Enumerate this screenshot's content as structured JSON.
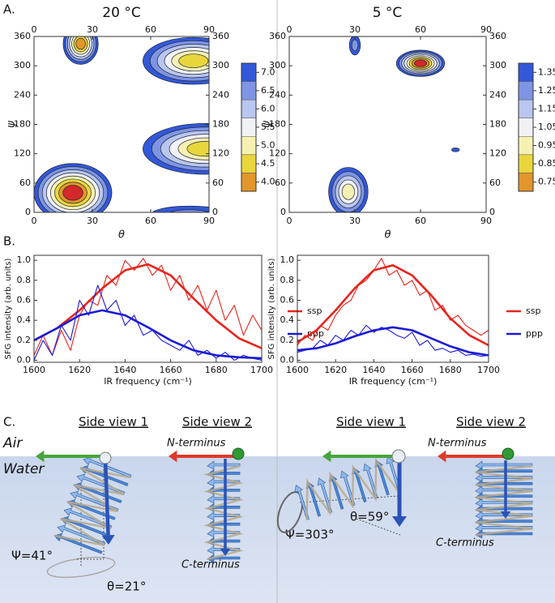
{
  "panels": {
    "a": "A.",
    "b": "B.",
    "c": "C."
  },
  "charts": [
    {
      "type": "contour",
      "title": "20 °C",
      "xlabel": "θ",
      "ylabel": "ψ",
      "xlim": [
        0,
        90
      ],
      "ylim": [
        0,
        360
      ],
      "xticks": [
        0,
        30,
        60,
        90
      ],
      "yticks": [
        0,
        60,
        120,
        180,
        240,
        300,
        360
      ],
      "colorbar": {
        "ticks": [
          {
            "value": 7,
            "label": "7.0"
          },
          6.5,
          {
            "value": 6,
            "label": "6.0"
          },
          5.5,
          {
            "value": 5,
            "label": "5.0"
          },
          4.5,
          {
            "value": 4,
            "label": "4.0"
          }
        ],
        "colors": [
          "#3358d8",
          "#7d95e4",
          "#b9c6ef",
          "#f1f2f7",
          "#f6f1b3",
          "#e9d63c",
          "#e2962c",
          "#d4282a"
        ]
      },
      "blobs": [
        {
          "center": [
            20,
            40
          ],
          "size": [
            20,
            60
          ],
          "rings": 8
        },
        {
          "center": [
            82,
            310
          ],
          "size": [
            26,
            48
          ],
          "rings": 6
        },
        {
          "center": [
            88,
            130
          ],
          "size": [
            32,
            52
          ],
          "rings": 6
        },
        {
          "center": [
            24,
            345
          ],
          "size": [
            9,
            42
          ],
          "rings": 7
        },
        {
          "center": [
            80,
            -5
          ],
          "size": [
            20,
            18
          ],
          "rings": 2
        }
      ]
    },
    {
      "type": "contour",
      "title": "5 °C",
      "xlabel": "θ",
      "ylabel": "ψ",
      "xlim": [
        0,
        90
      ],
      "ylim": [
        0,
        360
      ],
      "xticks": [
        0,
        30,
        60,
        90
      ],
      "yticks": [
        0,
        60,
        120,
        180,
        240,
        300,
        360
      ],
      "colorbar": {
        "ticks": [
          1.35,
          1.25,
          1.15,
          1.05,
          0.95,
          0.85,
          0.75
        ],
        "colors": [
          "#3358d8",
          "#7d95e4",
          "#b9c6ef",
          "#f1f2f7",
          "#f6f1b3",
          "#e9d63c",
          "#e2962c",
          "#d4282a"
        ]
      },
      "blobs": [
        {
          "center": [
            60,
            305
          ],
          "size": [
            11,
            27
          ],
          "rings": 8
        },
        {
          "center": [
            27,
            42
          ],
          "size": [
            9,
            50
          ],
          "rings": 5
        },
        {
          "center": [
            30,
            342
          ],
          "size": [
            2.5,
            20
          ],
          "rings": 2
        },
        {
          "center": [
            76,
            128
          ],
          "size": [
            1.8,
            4
          ],
          "rings": 1
        }
      ]
    }
  ],
  "spectra": [
    {
      "type": "line",
      "ylabel": "SFG intensity (arb. units)",
      "xlabel": "IR frequency (cm⁻¹)",
      "xlim": [
        1600,
        1700
      ],
      "ylim": [
        -0.02,
        1.05
      ],
      "xticks": [
        1600,
        1620,
        1640,
        1660,
        1680,
        1700
      ],
      "yticks": [
        {
          "value": 0,
          "label": "0.0"
        },
        0.2,
        0.4,
        0.6,
        0.8,
        {
          "value": 1,
          "label": "1.0"
        }
      ],
      "series": [
        {
          "name": "ssp",
          "color": "#e8231c",
          "data": {
            "x": [
              1600,
              1604,
              1608,
              1612,
              1616,
              1620,
              1624,
              1628,
              1632,
              1636,
              1640,
              1644,
              1648,
              1652,
              1656,
              1660,
              1664,
              1668,
              1672,
              1676,
              1680,
              1684,
              1688,
              1692,
              1696,
              1700
            ],
            "values": [
              0.05,
              0.25,
              0.05,
              0.3,
              0.1,
              0.45,
              0.6,
              0.55,
              0.85,
              0.75,
              1.0,
              0.9,
              1.02,
              0.85,
              0.95,
              0.7,
              0.85,
              0.6,
              0.75,
              0.5,
              0.7,
              0.4,
              0.55,
              0.25,
              0.45,
              0.3
            ]
          },
          "fit": {
            "x": [
              1600,
              1610,
              1620,
              1630,
              1640,
              1650,
              1660,
              1670,
              1680,
              1690,
              1700
            ],
            "values": [
              0.2,
              0.32,
              0.5,
              0.72,
              0.9,
              0.96,
              0.85,
              0.62,
              0.4,
              0.22,
              0.12
            ]
          }
        },
        {
          "name": "ppp",
          "color": "#1a1ad6",
          "data": {
            "x": [
              1600,
              1604,
              1608,
              1612,
              1616,
              1620,
              1624,
              1628,
              1632,
              1636,
              1640,
              1644,
              1648,
              1652,
              1656,
              1660,
              1664,
              1668,
              1672,
              1676,
              1680,
              1684,
              1688,
              1692,
              1696,
              1700
            ],
            "values": [
              0.0,
              0.2,
              0.05,
              0.35,
              0.2,
              0.6,
              0.45,
              0.75,
              0.5,
              0.6,
              0.35,
              0.45,
              0.25,
              0.3,
              0.2,
              0.15,
              0.1,
              0.2,
              0.05,
              0.1,
              0.02,
              0.08,
              0.0,
              0.05,
              0.02,
              0.0
            ]
          },
          "fit": {
            "x": [
              1600,
              1610,
              1620,
              1630,
              1640,
              1650,
              1660,
              1670,
              1680,
              1690,
              1700
            ],
            "values": [
              0.2,
              0.32,
              0.45,
              0.5,
              0.45,
              0.33,
              0.2,
              0.1,
              0.05,
              0.03,
              0.02
            ]
          }
        }
      ]
    },
    {
      "type": "line",
      "ylabel": "SFG intensity (arb. units)",
      "xlabel": "IR frequency (cm⁻¹)",
      "xlim": [
        1600,
        1700
      ],
      "ylim": [
        -0.02,
        1.05
      ],
      "xticks": [
        1600,
        1620,
        1640,
        1660,
        1680,
        1700
      ],
      "yticks": [
        {
          "value": 0,
          "label": "0.0"
        },
        0.2,
        0.4,
        0.6,
        0.8,
        {
          "value": 1,
          "label": "1.0"
        }
      ],
      "series": [
        {
          "name": "ssp",
          "color": "#e8231c",
          "data": {
            "x": [
              1600,
              1604,
              1608,
              1612,
              1616,
              1620,
              1624,
              1628,
              1632,
              1636,
              1640,
              1644,
              1648,
              1652,
              1656,
              1660,
              1664,
              1668,
              1672,
              1676,
              1680,
              1684,
              1688,
              1692,
              1696,
              1700
            ],
            "values": [
              0.15,
              0.25,
              0.2,
              0.35,
              0.3,
              0.45,
              0.55,
              0.6,
              0.75,
              0.8,
              0.9,
              1.02,
              0.85,
              0.9,
              0.75,
              0.8,
              0.65,
              0.7,
              0.5,
              0.55,
              0.4,
              0.45,
              0.35,
              0.3,
              0.25,
              0.3
            ]
          },
          "fit": {
            "x": [
              1600,
              1610,
              1620,
              1630,
              1640,
              1650,
              1660,
              1670,
              1680,
              1690,
              1700
            ],
            "values": [
              0.18,
              0.3,
              0.5,
              0.72,
              0.9,
              0.95,
              0.85,
              0.65,
              0.42,
              0.25,
              0.15
            ]
          }
        },
        {
          "name": "ppp",
          "color": "#1a1ad6",
          "data": {
            "x": [
              1600,
              1604,
              1608,
              1612,
              1616,
              1620,
              1624,
              1628,
              1632,
              1636,
              1640,
              1644,
              1648,
              1652,
              1656,
              1660,
              1664,
              1668,
              1672,
              1676,
              1680,
              1684,
              1688,
              1692,
              1696,
              1700
            ],
            "values": [
              0.08,
              0.1,
              0.12,
              0.2,
              0.15,
              0.25,
              0.2,
              0.3,
              0.25,
              0.35,
              0.28,
              0.33,
              0.3,
              0.25,
              0.22,
              0.28,
              0.15,
              0.2,
              0.1,
              0.12,
              0.08,
              0.1,
              0.05,
              0.06,
              0.04,
              0.05
            ]
          },
          "fit": {
            "x": [
              1600,
              1610,
              1620,
              1630,
              1640,
              1650,
              1660,
              1670,
              1680,
              1690,
              1700
            ],
            "values": [
              0.1,
              0.12,
              0.17,
              0.24,
              0.3,
              0.33,
              0.3,
              0.22,
              0.14,
              0.08,
              0.05
            ]
          }
        }
      ]
    }
  ],
  "air": "Air",
  "water": "Water",
  "views": [
    {
      "side1": "Side view 1",
      "side2": "Side view 2",
      "n": "N-terminus",
      "c": "C-terminus",
      "psi": "Ψ=41°",
      "theta": "θ=21°"
    },
    {
      "side1": "Side view 1",
      "side2": "Side view 2",
      "n": "N-terminus",
      "c": "C-terminus",
      "psi": "Ψ=303°",
      "theta": "θ=59°"
    }
  ]
}
